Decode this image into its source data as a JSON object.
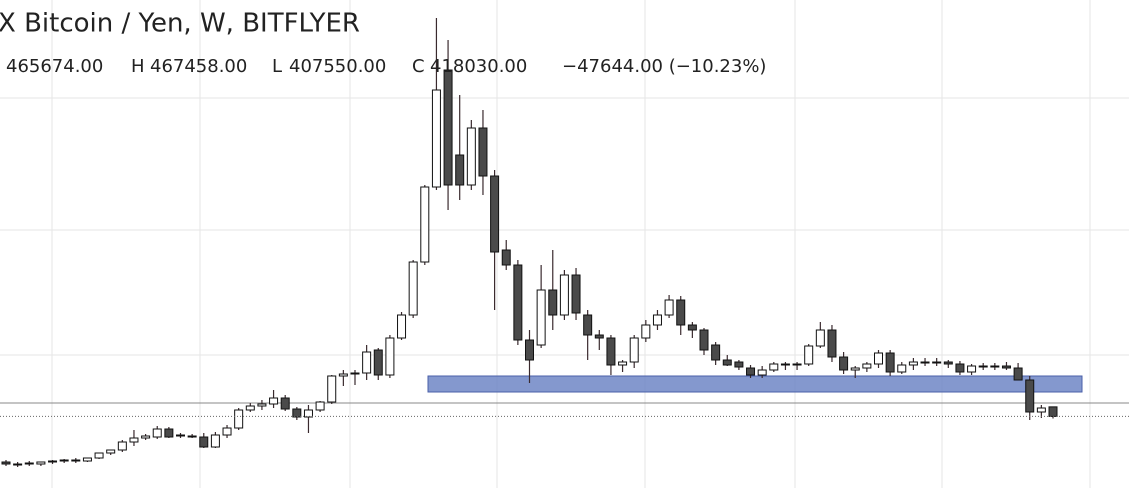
{
  "chart_data": {
    "type": "candlestick",
    "title": "X Bitcoin / Yen, W, BITFLYER",
    "header": [
      {
        "text": "465674.00"
      },
      {
        "label": "H",
        "text": "467458.00"
      },
      {
        "label": "L",
        "text": "407550.00"
      },
      {
        "label": "C",
        "text": "418030.00"
      },
      {
        "text": "−47644.00 (−10.23%)"
      }
    ],
    "ylim": [
      60000,
      2500000
    ],
    "up_color": "#ffffff",
    "down_color": "#4a4a4a",
    "zone": {
      "values": [
        540000,
        620000
      ],
      "color": "#6f86c6"
    },
    "values": [
      [
        190000,
        200000,
        170000,
        180000
      ],
      [
        180000,
        190000,
        165000,
        175000
      ],
      [
        185000,
        195000,
        170000,
        180000
      ],
      [
        180000,
        190000,
        170000,
        190000
      ],
      [
        190000,
        200000,
        180000,
        195000
      ],
      [
        195000,
        205000,
        185000,
        200000
      ],
      [
        200000,
        210000,
        185000,
        195000
      ],
      [
        195000,
        210000,
        190000,
        210000
      ],
      [
        210000,
        235000,
        205000,
        235000
      ],
      [
        235000,
        250000,
        225000,
        250000
      ],
      [
        250000,
        300000,
        240000,
        290000
      ],
      [
        290000,
        350000,
        270000,
        310000
      ],
      [
        310000,
        330000,
        300000,
        320000
      ],
      [
        315000,
        370000,
        305000,
        355000
      ],
      [
        355000,
        365000,
        310000,
        315000
      ],
      [
        320000,
        335000,
        310000,
        325000
      ],
      [
        320000,
        330000,
        310000,
        315000
      ],
      [
        315000,
        335000,
        260000,
        265000
      ],
      [
        265000,
        340000,
        260000,
        325000
      ],
      [
        325000,
        375000,
        310000,
        360000
      ],
      [
        360000,
        460000,
        350000,
        450000
      ],
      [
        450000,
        485000,
        440000,
        470000
      ],
      [
        470000,
        500000,
        450000,
        480000
      ],
      [
        480000,
        550000,
        460000,
        510000
      ],
      [
        510000,
        525000,
        445000,
        455000
      ],
      [
        455000,
        465000,
        400000,
        415000
      ],
      [
        415000,
        475000,
        335000,
        450000
      ],
      [
        450000,
        495000,
        440000,
        490000
      ],
      [
        490000,
        625000,
        480000,
        620000
      ],
      [
        620000,
        650000,
        570000,
        630000
      ],
      [
        630000,
        650000,
        575000,
        635000
      ],
      [
        635000,
        775000,
        600000,
        740000
      ],
      [
        750000,
        760000,
        600000,
        625000
      ],
      [
        625000,
        825000,
        610000,
        810000
      ],
      [
        810000,
        940000,
        800000,
        925000
      ],
      [
        925000,
        1200000,
        910000,
        1190000
      ],
      [
        1190000,
        1575000,
        1175000,
        1565000
      ],
      [
        1565000,
        2410000,
        1550000,
        2050000
      ],
      [
        2150000,
        2300000,
        1450000,
        1575000
      ],
      [
        1725000,
        2025000,
        1500000,
        1575000
      ],
      [
        1575000,
        1900000,
        1550000,
        1860000
      ],
      [
        1860000,
        1950000,
        1525000,
        1620000
      ],
      [
        1620000,
        1650000,
        950000,
        1240000
      ],
      [
        1250000,
        1300000,
        1150000,
        1175000
      ],
      [
        1175000,
        1200000,
        775000,
        800000
      ],
      [
        800000,
        850000,
        585000,
        700000
      ],
      [
        775000,
        1175000,
        760000,
        1050000
      ],
      [
        1050000,
        1250000,
        850000,
        925000
      ],
      [
        925000,
        1150000,
        900000,
        1125000
      ],
      [
        1125000,
        1160000,
        900000,
        935000
      ],
      [
        925000,
        950000,
        700000,
        825000
      ],
      [
        825000,
        850000,
        750000,
        810000
      ],
      [
        810000,
        825000,
        625000,
        675000
      ],
      [
        675000,
        700000,
        640000,
        690000
      ],
      [
        690000,
        825000,
        660000,
        810000
      ],
      [
        810000,
        900000,
        790000,
        875000
      ],
      [
        875000,
        950000,
        850000,
        925000
      ],
      [
        925000,
        1025000,
        910000,
        1000000
      ],
      [
        1000000,
        1020000,
        825000,
        875000
      ],
      [
        875000,
        890000,
        810000,
        850000
      ],
      [
        850000,
        860000,
        725000,
        750000
      ],
      [
        775000,
        790000,
        675000,
        700000
      ],
      [
        700000,
        725000,
        670000,
        675000
      ],
      [
        690000,
        700000,
        650000,
        665000
      ],
      [
        660000,
        675000,
        610000,
        625000
      ],
      [
        625000,
        670000,
        610000,
        650000
      ],
      [
        650000,
        690000,
        640000,
        680000
      ],
      [
        680000,
        690000,
        650000,
        675000
      ],
      [
        675000,
        690000,
        650000,
        680000
      ],
      [
        680000,
        780000,
        670000,
        770000
      ],
      [
        770000,
        890000,
        760000,
        850000
      ],
      [
        850000,
        875000,
        690000,
        715000
      ],
      [
        715000,
        740000,
        630000,
        650000
      ],
      [
        650000,
        670000,
        610000,
        660000
      ],
      [
        660000,
        690000,
        640000,
        680000
      ],
      [
        680000,
        750000,
        660000,
        735000
      ],
      [
        735000,
        750000,
        620000,
        640000
      ],
      [
        640000,
        690000,
        630000,
        675000
      ],
      [
        675000,
        710000,
        650000,
        690000
      ],
      [
        690000,
        710000,
        670000,
        685000
      ],
      [
        685000,
        710000,
        670000,
        690000
      ],
      [
        690000,
        700000,
        660000,
        680000
      ],
      [
        680000,
        695000,
        625000,
        640000
      ],
      [
        640000,
        680000,
        625000,
        670000
      ],
      [
        670000,
        685000,
        650000,
        665000
      ],
      [
        665000,
        685000,
        650000,
        670000
      ],
      [
        670000,
        690000,
        650000,
        660000
      ],
      [
        660000,
        685000,
        600000,
        600000
      ],
      [
        600000,
        620000,
        400000,
        440000
      ],
      [
        440000,
        475000,
        410000,
        460000
      ],
      [
        465674,
        467458,
        407550,
        418030
      ]
    ]
  }
}
